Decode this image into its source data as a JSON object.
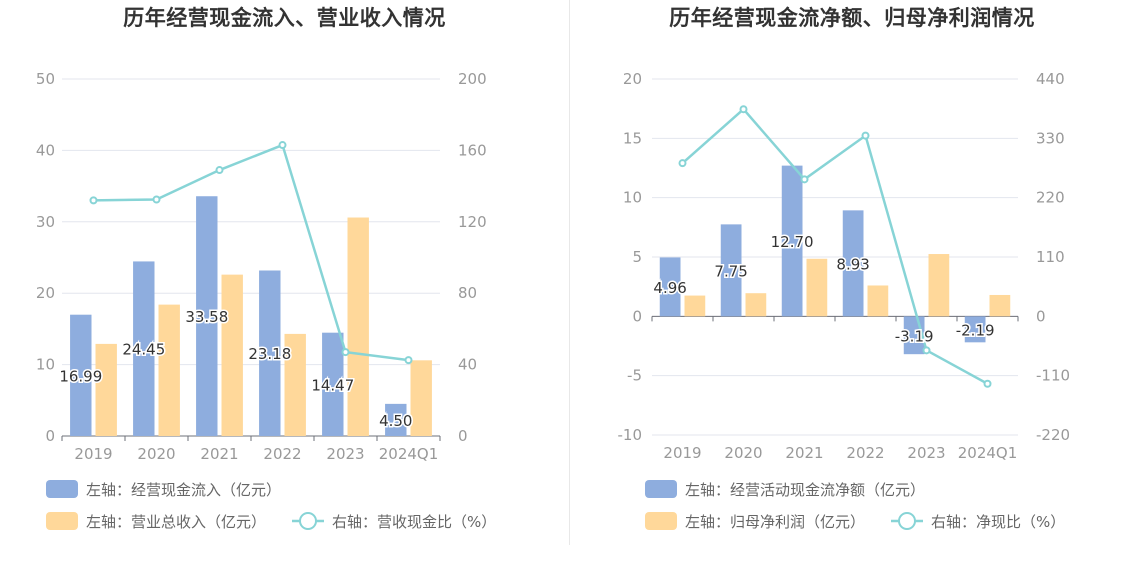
{
  "colors": {
    "bar_primary": "#8eadde",
    "bar_secondary": "#ffd89a",
    "line": "#87d4d6",
    "grid": "#e3e6ee",
    "axis_text": "#999999"
  },
  "chart_data": [
    {
      "type": "bar",
      "title": "历年经营现金流入、营业收入情况",
      "categories": [
        "2019",
        "2020",
        "2021",
        "2022",
        "2023",
        "2024Q1"
      ],
      "left_axis": {
        "ylim": [
          0,
          50
        ],
        "ticks": [
          "0",
          "10",
          "20",
          "30",
          "40",
          "50"
        ]
      },
      "right_axis": {
        "ylim": [
          0,
          200
        ],
        "ticks": [
          "0",
          "40",
          "80",
          "120",
          "160",
          "200"
        ]
      },
      "series": [
        {
          "name": "左轴：经营现金流入（亿元）",
          "kind": "bar",
          "axis": "left",
          "values": [
            16.99,
            24.45,
            33.58,
            23.18,
            14.47,
            4.5
          ],
          "labels": [
            "16.99",
            "24.45",
            "33.58",
            "23.18",
            "14.47",
            "4.50"
          ]
        },
        {
          "name": "左轴：营业总收入（亿元）",
          "kind": "bar",
          "axis": "left",
          "values": [
            12.9,
            18.4,
            22.6,
            14.3,
            30.6,
            10.6
          ]
        },
        {
          "name": "右轴：营收现金比（%）",
          "kind": "line",
          "axis": "right",
          "values": [
            132,
            132.5,
            149,
            163,
            47,
            42.5
          ]
        }
      ],
      "legend": [
        "左轴：经营现金流入（亿元）",
        "左轴：营业总收入（亿元）",
        "右轴：营收现金比（%）"
      ],
      "grid": true
    },
    {
      "type": "bar",
      "title": "历年经营现金流净额、归母净利润情况",
      "categories": [
        "2019",
        "2020",
        "2021",
        "2022",
        "2023",
        "2024Q1"
      ],
      "left_axis": {
        "ylim": [
          -10,
          20
        ],
        "ticks": [
          "-10",
          "-5",
          "0",
          "5",
          "10",
          "15",
          "20"
        ]
      },
      "right_axis": {
        "ylim": [
          -220,
          440
        ],
        "ticks": [
          "-220",
          "-110",
          "0",
          "110",
          "220",
          "330",
          "440"
        ]
      },
      "series": [
        {
          "name": "左轴：经营活动现金流净额（亿元）",
          "kind": "bar",
          "axis": "left",
          "values": [
            4.96,
            7.75,
            12.7,
            8.93,
            -3.19,
            -2.19
          ],
          "labels": [
            "4.96",
            "7.75",
            "12.70",
            "8.93",
            "-3.19",
            "-2.19"
          ]
        },
        {
          "name": "左轴：归母净利润（亿元）",
          "kind": "bar",
          "axis": "left",
          "values": [
            1.75,
            1.95,
            4.85,
            2.6,
            5.25,
            1.8
          ]
        },
        {
          "name": "右轴：净现比（%）",
          "kind": "line",
          "axis": "right",
          "values": [
            284,
            384,
            254,
            335,
            -63,
            -125
          ]
        }
      ],
      "legend": [
        "左轴：经营活动现金流净额（亿元）",
        "左轴：归母净利润（亿元）",
        "右轴：净现比（%）"
      ],
      "grid": true
    }
  ]
}
